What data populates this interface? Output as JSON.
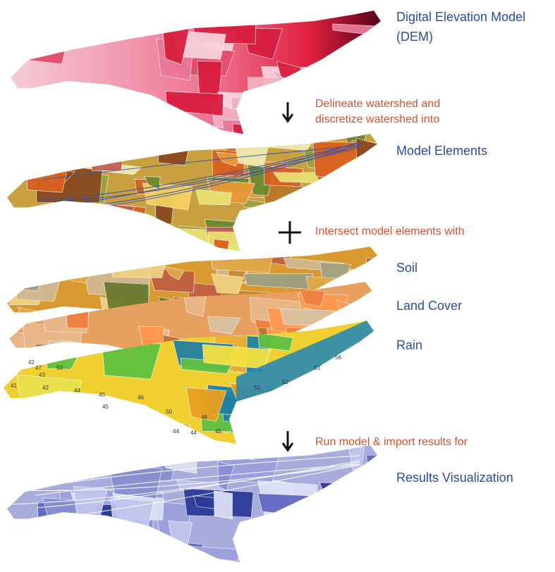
{
  "steps": {
    "dem": [
      "Digital Elevation Model",
      "(DEM)"
    ],
    "delineate": [
      "Delineate watershed and",
      "discretize watershed into"
    ],
    "elements": "Model Elements",
    "intersect": "Intersect model elements with",
    "soil": "Soil",
    "land_cover": "Land Cover",
    "rain": "Rain",
    "run": "Run model & import results for",
    "results": "Results Visualization"
  },
  "rain_map": {
    "labels": [
      42,
      47,
      43,
      50,
      41,
      42,
      44,
      45,
      46,
      45,
      50,
      48,
      44,
      44,
      45,
      51,
      52,
      53,
      56
    ]
  }
}
